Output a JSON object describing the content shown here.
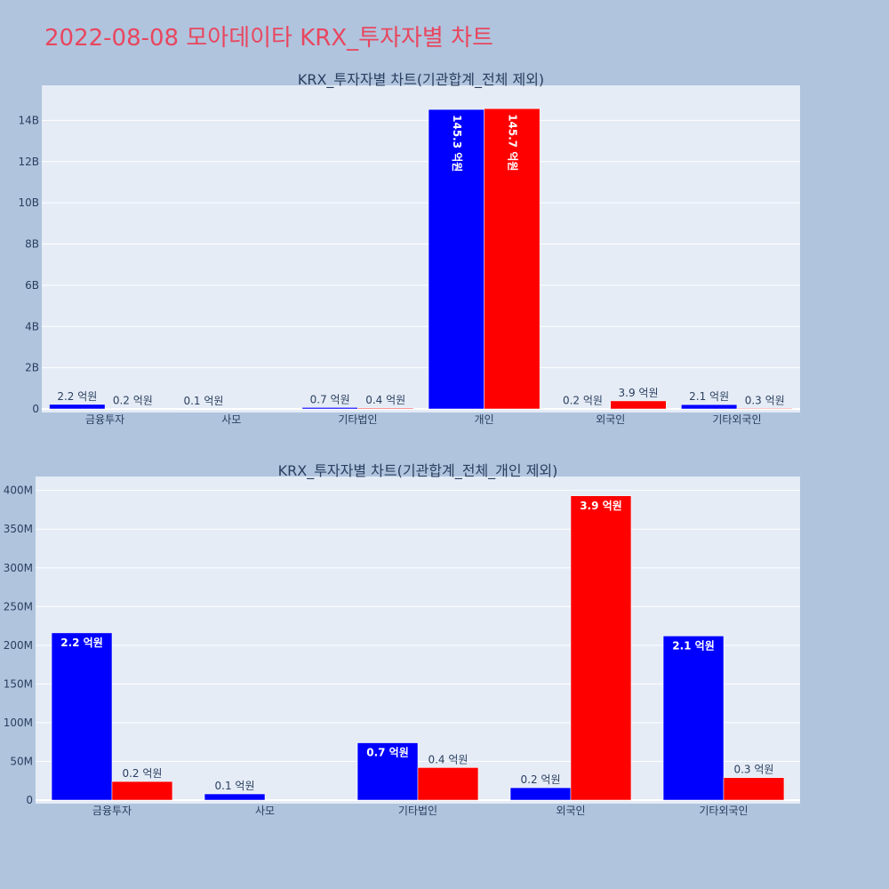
{
  "page": {
    "title": "2022-08-08 모아데이타 KRX_투자자별 차트"
  },
  "colors": {
    "buy": "#0000ff",
    "sell": "#ff0000",
    "plot_bg": "#e5ecf6",
    "page_bg": "#b0c4de",
    "title": "#e8475f"
  },
  "chart_data": [
    {
      "type": "bar",
      "title": "KRX_투자자별 차트(기관합계_전체 제외)",
      "categories": [
        "금융투자",
        "사모",
        "기타법인",
        "개인",
        "외국인",
        "기타외국인"
      ],
      "series": [
        {
          "values": [
            220000000,
            10000000,
            70000000,
            14530000000,
            20000000,
            210000000
          ],
          "labels": [
            "2.2 억원",
            "0.1 억원",
            "0.7 억원",
            "145.3 억원",
            "0.2 억원",
            "2.1 억원"
          ]
        },
        {
          "values": [
            20000000,
            0,
            40000000,
            14570000000,
            390000000,
            30000000
          ],
          "labels": [
            "0.2 억원",
            "",
            "0.4 억원",
            "145.7 억원",
            "3.9 억원",
            "0.3 억원"
          ]
        }
      ],
      "ylim": [
        0,
        15700000000
      ],
      "yticks": [
        0,
        2000000000,
        4000000000,
        6000000000,
        8000000000,
        10000000000,
        12000000000,
        14000000000
      ],
      "ytick_labels": [
        "0",
        "2B",
        "4B",
        "6B",
        "8B",
        "10B",
        "12B",
        "14B"
      ],
      "grid": true,
      "legend": "none"
    },
    {
      "type": "bar",
      "title": "KRX_투자자별 차트(기관합계_전체_개인 제외)",
      "categories": [
        "금융투자",
        "사모",
        "기타법인",
        "외국인",
        "기타외국인"
      ],
      "series": [
        {
          "values": [
            216000000,
            8000000,
            74000000,
            16000000,
            212000000
          ],
          "labels": [
            "2.2 억원",
            "0.1 억원",
            "0.7 억원",
            "0.2 억원",
            "2.1 억원"
          ]
        },
        {
          "values": [
            24000000,
            0,
            42000000,
            393000000,
            29000000
          ],
          "labels": [
            "0.2 억원",
            "",
            "0.4 억원",
            "3.9 억원",
            "0.3 억원"
          ]
        }
      ],
      "ylim": [
        0,
        418000000
      ],
      "yticks": [
        0,
        50000000,
        100000000,
        150000000,
        200000000,
        250000000,
        300000000,
        350000000,
        400000000
      ],
      "ytick_labels": [
        "0",
        "50M",
        "100M",
        "150M",
        "200M",
        "250M",
        "300M",
        "350M",
        "400M"
      ],
      "grid": true,
      "legend": "none"
    }
  ]
}
